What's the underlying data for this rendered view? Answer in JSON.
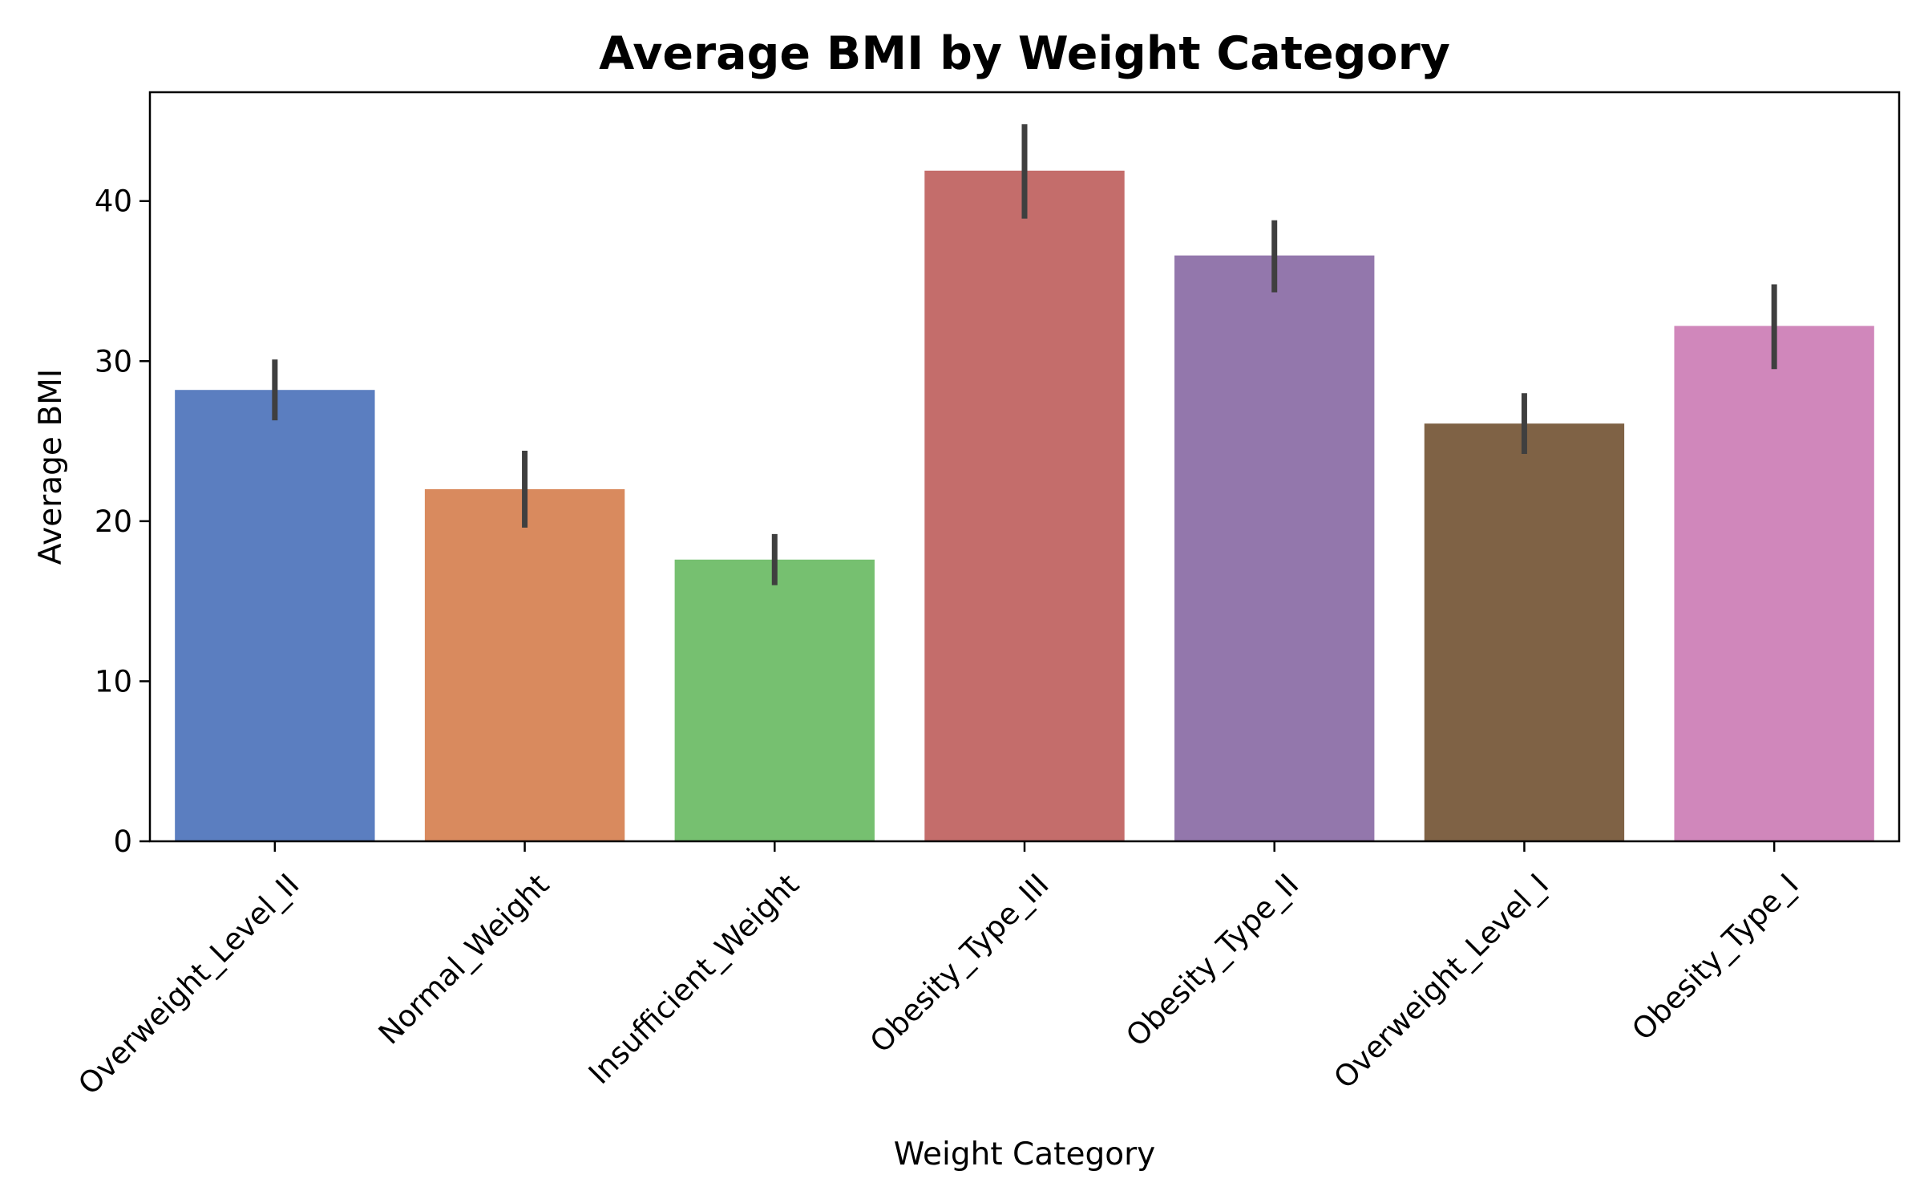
{
  "chart_data": {
    "type": "bar",
    "title": "Average BMI by Weight Category",
    "xlabel": "Weight Category",
    "ylabel": "Average BMI",
    "categories": [
      "Overweight_Level_II",
      "Normal_Weight",
      "Insufficient_Weight",
      "Obesity_Type_III",
      "Obesity_Type_II",
      "Overweight_Level_I",
      "Obesity_Type_I"
    ],
    "values": [
      28.2,
      22.0,
      17.6,
      41.9,
      36.6,
      26.1,
      32.2
    ],
    "error_bars": [
      [
        26.3,
        30.1
      ],
      [
        19.6,
        24.4
      ],
      [
        16.0,
        19.2
      ],
      [
        38.9,
        44.8
      ],
      [
        34.3,
        38.8
      ],
      [
        24.2,
        28.0
      ],
      [
        29.5,
        34.8
      ]
    ],
    "colors": [
      "#5b7ec0",
      "#d98a5e",
      "#76c070",
      "#c46d6b",
      "#9377ac",
      "#7f6245",
      "#d087bb"
    ],
    "error_color": "#3f3f3f",
    "ylim": [
      0,
      46.8
    ],
    "yticks": [
      0,
      10,
      20,
      30,
      40
    ],
    "grid": false,
    "legend": "none"
  }
}
